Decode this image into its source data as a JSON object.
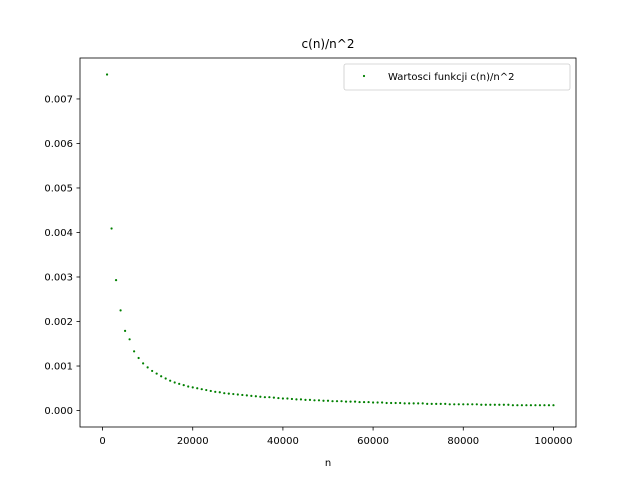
{
  "chart_data": {
    "type": "scatter",
    "title": "c(n)/n^2",
    "xlabel": "n",
    "ylabel": "",
    "xlim": [
      -5000,
      105000
    ],
    "ylim": [
      -0.00037,
      0.00792
    ],
    "xticks": [
      0,
      20000,
      40000,
      60000,
      80000,
      100000
    ],
    "xtick_labels": [
      "0",
      "20000",
      "40000",
      "60000",
      "80000",
      "100000"
    ],
    "yticks": [
      0.0,
      0.001,
      0.002,
      0.003,
      0.004,
      0.005,
      0.006,
      0.007
    ],
    "ytick_labels": [
      "0.000",
      "0.001",
      "0.002",
      "0.003",
      "0.004",
      "0.005",
      "0.006",
      "0.007"
    ],
    "grid": false,
    "legend": {
      "position": "top-right",
      "entries": [
        "Wartosci funkcji c(n)/n^2"
      ]
    },
    "colors": {
      "series": "#008000",
      "axes": "#000000",
      "background": "#ffffff"
    },
    "series": [
      {
        "name": "Wartosci funkcji c(n)/n^2",
        "x": [
          1000,
          2000,
          3000,
          4000,
          5000,
          6000,
          7000,
          8000,
          9000,
          10000,
          11000,
          12000,
          13000,
          14000,
          15000,
          16000,
          17000,
          18000,
          19000,
          20000,
          21000,
          22000,
          23000,
          24000,
          25000,
          26000,
          27000,
          28000,
          29000,
          30000,
          31000,
          32000,
          33000,
          34000,
          35000,
          36000,
          37000,
          38000,
          39000,
          40000,
          41000,
          42000,
          43000,
          44000,
          45000,
          46000,
          47000,
          48000,
          49000,
          50000,
          51000,
          52000,
          53000,
          54000,
          55000,
          56000,
          57000,
          58000,
          59000,
          60000,
          61000,
          62000,
          63000,
          64000,
          65000,
          66000,
          67000,
          68000,
          69000,
          70000,
          71000,
          72000,
          73000,
          74000,
          75000,
          76000,
          77000,
          78000,
          79000,
          80000,
          81000,
          82000,
          83000,
          84000,
          85000,
          86000,
          87000,
          88000,
          89000,
          90000,
          91000,
          92000,
          93000,
          94000,
          95000,
          96000,
          97000,
          98000,
          99000,
          100000
        ],
        "y": [
          0.00755,
          0.00409,
          0.00293,
          0.00225,
          0.00179,
          0.0016,
          0.00133,
          0.00118,
          0.00106,
          0.00097,
          0.00089,
          0.00083,
          0.00077,
          0.00072,
          0.00067,
          0.00063,
          0.0006,
          0.00057,
          0.00054,
          0.00052,
          0.0005,
          0.00048,
          0.00046,
          0.00044,
          0.00042,
          0.00041,
          0.00039,
          0.00038,
          0.00037,
          0.00036,
          0.00035,
          0.00034,
          0.00033,
          0.00032,
          0.00031,
          0.0003,
          0.0003,
          0.00029,
          0.00028,
          0.00027,
          0.00027,
          0.00026,
          0.00025,
          0.00025,
          0.00024,
          0.00024,
          0.00023,
          0.00023,
          0.00022,
          0.00022,
          0.00021,
          0.00021,
          0.00021,
          0.0002,
          0.0002,
          0.0002,
          0.00019,
          0.00019,
          0.00019,
          0.00018,
          0.00018,
          0.00018,
          0.00017,
          0.00017,
          0.00017,
          0.00017,
          0.00016,
          0.00016,
          0.00016,
          0.00016,
          0.00016,
          0.00015,
          0.00015,
          0.00015,
          0.00015,
          0.00015,
          0.00014,
          0.00014,
          0.00014,
          0.00014,
          0.00014,
          0.00014,
          0.00014,
          0.00013,
          0.00013,
          0.00013,
          0.00013,
          0.00013,
          0.00013,
          0.00013,
          0.00012,
          0.00012,
          0.00012,
          0.00012,
          0.00012,
          0.00012,
          0.00012,
          0.00012,
          0.00012,
          0.00012
        ]
      }
    ]
  }
}
